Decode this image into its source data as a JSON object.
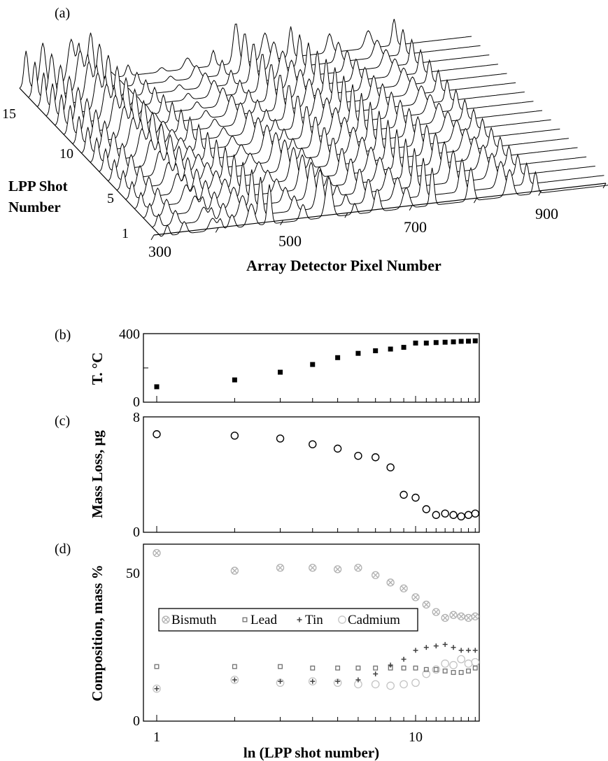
{
  "panel_a": {
    "letter": "(a)",
    "xlabel": "Array Detector Pixel Number",
    "ylabel_line1": "LPP Shot",
    "ylabel_line2": "Number",
    "x_ticks": [
      "300",
      "500",
      "700",
      "900"
    ],
    "y_ticks": [
      "1",
      "5",
      "10",
      "15"
    ],
    "chart_data": {
      "type": "line",
      "x_range": [
        300,
        1000
      ],
      "shots": 17,
      "peak_pixels": [
        310,
        336,
        380,
        392,
        410,
        440,
        468,
        520,
        560,
        600,
        635,
        680,
        720,
        780,
        840,
        880
      ]
    }
  },
  "panel_b": {
    "letter": "(b)",
    "ylabel": "T. °C",
    "y_ticks": [
      "0",
      "400"
    ],
    "chart_data": {
      "type": "scatter",
      "x_scale": "log",
      "xlim": [
        1,
        17
      ],
      "ylim": [
        0,
        400
      ],
      "x": [
        1,
        2,
        3,
        4,
        5,
        6,
        7,
        8,
        9,
        10,
        11,
        12,
        13,
        14,
        15,
        16,
        17
      ],
      "values": [
        90,
        130,
        175,
        220,
        260,
        285,
        300,
        310,
        320,
        345,
        345,
        348,
        350,
        352,
        355,
        356,
        358
      ]
    }
  },
  "panel_c": {
    "letter": "(c)",
    "ylabel": "Mass Loss, μg",
    "y_ticks": [
      "0",
      "8"
    ],
    "chart_data": {
      "type": "scatter",
      "x_scale": "log",
      "xlim": [
        1,
        17
      ],
      "ylim": [
        0,
        8
      ],
      "x": [
        1,
        2,
        3,
        4,
        5,
        6,
        7,
        8,
        9,
        10,
        11,
        12,
        13,
        14,
        15,
        16,
        17
      ],
      "values": [
        6.8,
        6.7,
        6.5,
        6.1,
        5.8,
        5.3,
        5.2,
        4.5,
        2.6,
        2.4,
        1.6,
        1.2,
        1.3,
        1.2,
        1.1,
        1.2,
        1.3
      ]
    }
  },
  "panel_d": {
    "letter": "(d)",
    "ylabel": "Composition, mass %",
    "xlabel": "ln (LPP shot number)",
    "y_ticks": [
      "0",
      "50"
    ],
    "x_ticks": [
      "1",
      "10"
    ],
    "legend": [
      "Bismuth",
      "Lead",
      "Tin",
      "Cadmium"
    ],
    "colors": {
      "bismuth": "#b0b0b0",
      "lead": "#707070",
      "tin": "#404040",
      "cadmium": "#c4c4c4"
    },
    "chart_data": {
      "type": "scatter",
      "x_scale": "log",
      "xlim": [
        1,
        17
      ],
      "ylim": [
        0,
        60
      ],
      "x": [
        1,
        2,
        3,
        4,
        5,
        6,
        7,
        8,
        9,
        10,
        11,
        12,
        13,
        14,
        15,
        16,
        17
      ],
      "series": [
        {
          "name": "Bismuth",
          "values": [
            57,
            51,
            52,
            52,
            51.5,
            52,
            49.5,
            47,
            45,
            42,
            39.5,
            37,
            35,
            36,
            35.5,
            35,
            35.5
          ]
        },
        {
          "name": "Lead",
          "values": [
            18.5,
            18.5,
            18.5,
            18,
            18,
            18,
            18,
            18,
            18,
            18,
            17.5,
            17.5,
            17,
            16.5,
            16.5,
            17,
            18
          ]
        },
        {
          "name": "Tin",
          "values": [
            11,
            14,
            13.5,
            13.5,
            13.5,
            14,
            16,
            19,
            21,
            24,
            25,
            25.5,
            26,
            25,
            24,
            24,
            24
          ]
        },
        {
          "name": "Cadmium",
          "values": [
            11,
            14,
            13,
            13.5,
            13,
            12.5,
            12.5,
            12,
            12.5,
            13,
            16,
            17.5,
            19.5,
            19,
            21,
            19.5,
            20
          ]
        }
      ]
    }
  }
}
